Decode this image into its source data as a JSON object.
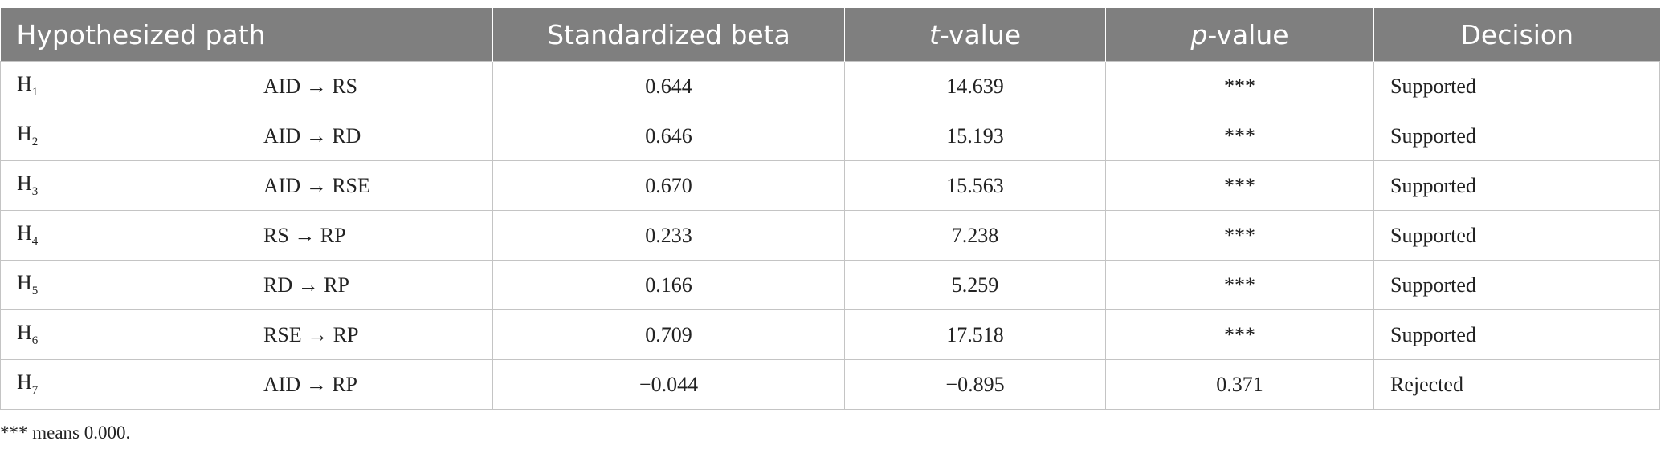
{
  "table": {
    "header": [
      "Hypothesized path",
      "Standardized beta",
      [
        "t",
        "-value"
      ],
      [
        "p",
        "-value"
      ],
      "Decision"
    ],
    "rows": [
      [
        [
          "H",
          "1"
        ],
        "AID → RS",
        "0.644",
        "14.639",
        "***",
        "Supported"
      ],
      [
        [
          "H",
          "2"
        ],
        "AID → RD",
        "0.646",
        "15.193",
        "***",
        "Supported"
      ],
      [
        [
          "H",
          "3"
        ],
        "AID → RSE",
        "0.670",
        "15.563",
        "***",
        "Supported"
      ],
      [
        [
          "H",
          "4"
        ],
        "RS → RP",
        "0.233",
        "7.238",
        "***",
        "Supported"
      ],
      [
        [
          "H",
          "5"
        ],
        "RD → RP",
        "0.166",
        "5.259",
        "***",
        "Supported"
      ],
      [
        [
          "H",
          "6"
        ],
        "RSE → RP",
        "0.709",
        "17.518",
        "***",
        "Supported"
      ],
      [
        [
          "H",
          "7"
        ],
        "AID → RP",
        "−0.044",
        "−0.895",
        "0.371",
        "Rejected"
      ]
    ]
  },
  "footnote": "*** means 0.000."
}
